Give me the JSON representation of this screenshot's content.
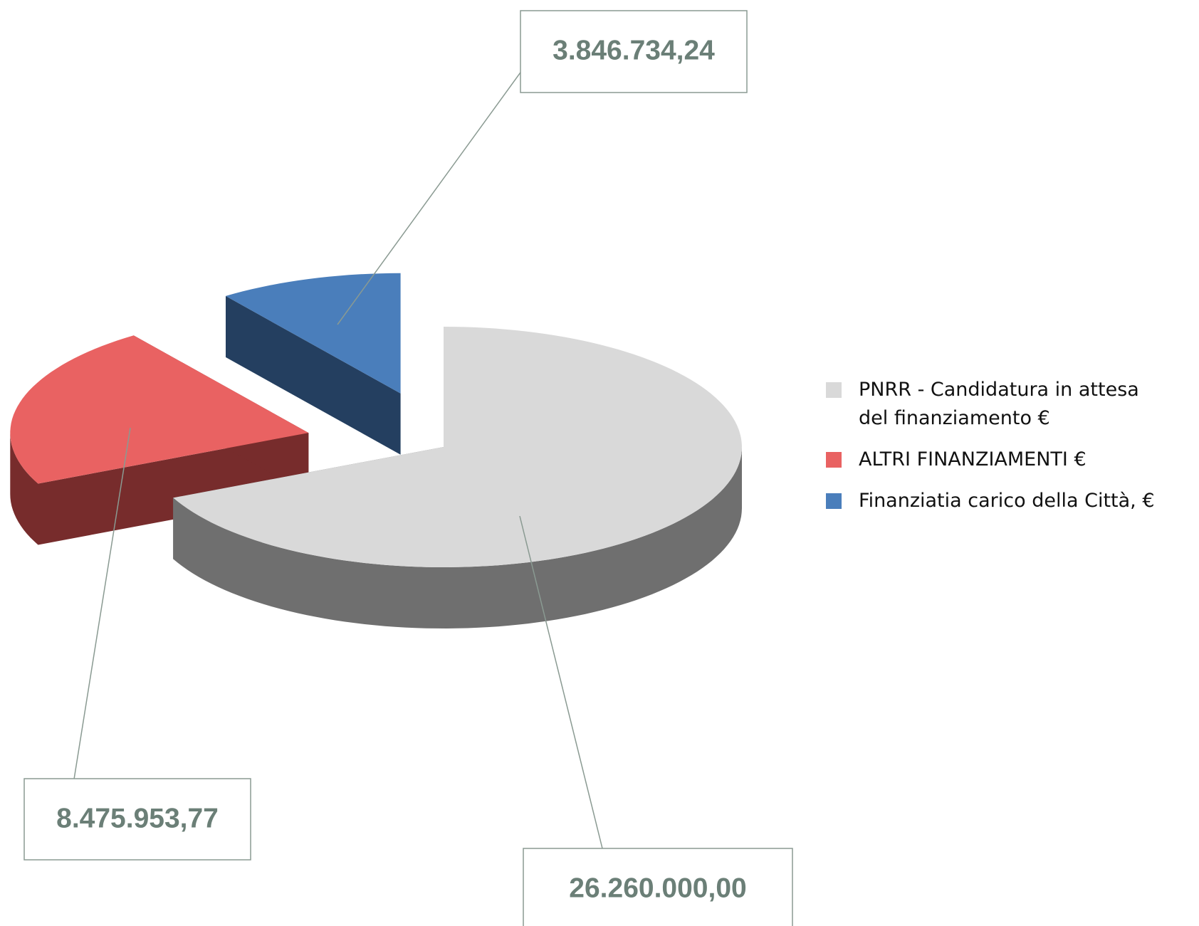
{
  "chart_data": {
    "type": "pie3d",
    "categories": [
      "PNRR - Candidatura in attesa del finanziamento €",
      "ALTRI FINANZIAMENTI €",
      "Finanziatia carico della Città, €"
    ],
    "values": [
      26260000,
      8475953.77,
      3846734.24
    ],
    "value_labels": [
      "26.260.000,00",
      "8.475.953,77",
      "3.846.734,24"
    ],
    "colors": [
      "#d9d9d9",
      "#e96262",
      "#4a7ebb"
    ],
    "legend": "right"
  }
}
